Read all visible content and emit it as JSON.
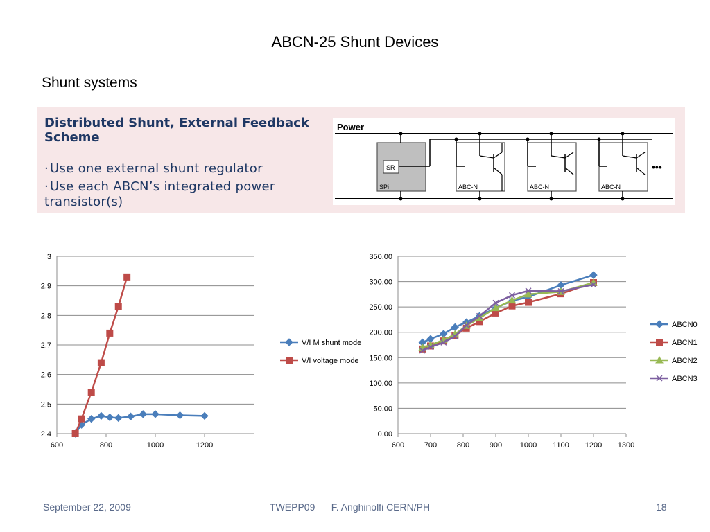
{
  "slide": {
    "title": "ABCN-25 Shunt Devices",
    "subtitle": "Shunt systems"
  },
  "panel": {
    "heading": "Distributed Shunt, External Feedback Scheme",
    "bullets": [
      "Use one external shunt regulator",
      "Use each ABCN’s integrated power transistor(s)"
    ]
  },
  "diagram": {
    "power_label": "Power",
    "sr_label": "SR",
    "spi_label": "SPi",
    "chip_labels": [
      "ABC-N",
      "ABC-N",
      "ABC-N"
    ],
    "ellipsis": "•••"
  },
  "footer": {
    "date": "September 22, 2009",
    "center": "TWEPP09      F. Anghinolfi CERN/PH",
    "page": "18"
  },
  "colors": {
    "blue": "#4a7ebb",
    "red": "#be4b48",
    "green": "#98b954",
    "purple": "#7d60a0",
    "heading": "#1f3864",
    "panel_bg": "#f7e7e8"
  },
  "chart_data": [
    {
      "type": "line",
      "title": "",
      "xlabel": "",
      "ylabel": "",
      "xlim": [
        600,
        1400
      ],
      "ylim": [
        2.4,
        3.0
      ],
      "xticks": [
        "600",
        "800",
        "1000",
        "1200"
      ],
      "yticks": [
        "2.4",
        "2.5",
        "2.6",
        "2.7",
        "2.8",
        "2.9",
        "3"
      ],
      "grid": true,
      "legend": "right",
      "series": [
        {
          "name": "V/I M shunt mode",
          "x": [
            675,
            700,
            740,
            780,
            815,
            850,
            900,
            950,
            1000,
            1100,
            1200
          ],
          "y": [
            2.4,
            2.43,
            2.45,
            2.46,
            2.455,
            2.453,
            2.458,
            2.466,
            2.466,
            2.462,
            2.46
          ]
        },
        {
          "name": "V/I voltage mode",
          "x": [
            675,
            700,
            740,
            780,
            815,
            850,
            885
          ],
          "y": [
            2.4,
            2.45,
            2.54,
            2.64,
            2.74,
            2.83,
            2.93
          ]
        }
      ]
    },
    {
      "type": "line",
      "title": "",
      "xlabel": "",
      "ylabel": "",
      "xlim": [
        600,
        1300
      ],
      "ylim": [
        0,
        350
      ],
      "xticks": [
        "600",
        "700",
        "800",
        "900",
        "1000",
        "1100",
        "1200",
        "1300"
      ],
      "yticks": [
        "0.00",
        "50.00",
        "100.00",
        "150.00",
        "200.00",
        "250.00",
        "300.00",
        "350.00"
      ],
      "grid": true,
      "legend": "right",
      "series": [
        {
          "name": "ABCN0",
          "x": [
            675,
            700,
            740,
            775,
            810,
            850,
            900,
            950,
            1000,
            1100,
            1200
          ],
          "y": [
            180,
            187,
            197,
            210,
            220,
            232,
            248,
            262,
            270,
            293,
            313
          ]
        },
        {
          "name": "ABCN1",
          "x": [
            675,
            700,
            740,
            775,
            810,
            850,
            900,
            950,
            1000,
            1100,
            1200
          ],
          "y": [
            167,
            173,
            183,
            194,
            208,
            221,
            238,
            252,
            259,
            276,
            298
          ]
        },
        {
          "name": "ABCN2",
          "x": [
            675,
            700,
            740,
            775,
            810,
            850,
            900,
            950,
            1000,
            1100,
            1200
          ],
          "y": [
            170,
            175,
            185,
            196,
            213,
            228,
            248,
            263,
            275,
            280,
            298
          ]
        },
        {
          "name": "ABCN3",
          "x": [
            675,
            700,
            740,
            775,
            810,
            850,
            900,
            950,
            1000,
            1100,
            1200
          ],
          "y": [
            164,
            171,
            180,
            192,
            214,
            232,
            258,
            273,
            282,
            281,
            294
          ]
        }
      ]
    }
  ]
}
